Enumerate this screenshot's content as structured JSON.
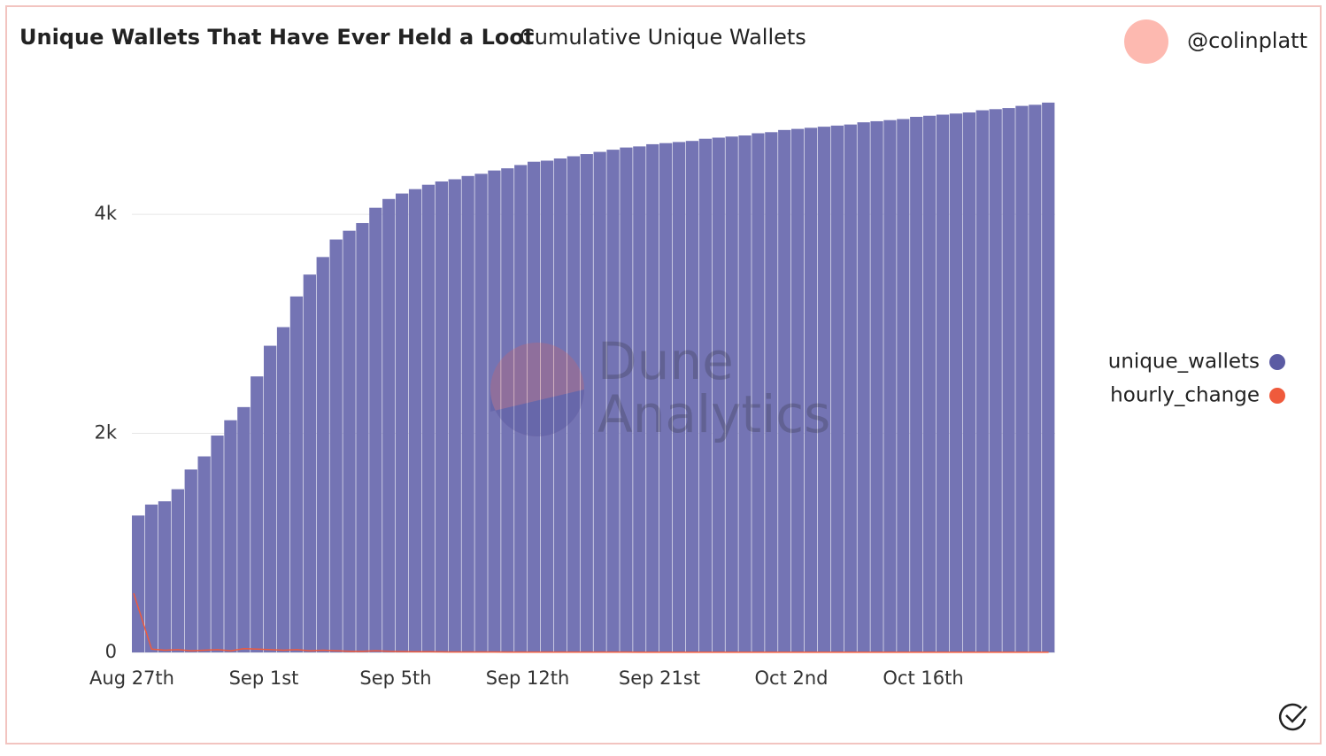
{
  "chart_data": {
    "type": "bar",
    "title": "Unique Wallets That Have Ever Held a Loot",
    "subtitle": "Cumulative Unique Wallets",
    "author": "@colinplatt",
    "watermark": [
      "Dune",
      "Analytics"
    ],
    "categories": [
      "Aug 27th",
      null,
      null,
      null,
      null,
      null,
      null,
      null,
      null,
      null,
      "Sep 1st",
      null,
      null,
      null,
      null,
      null,
      null,
      null,
      null,
      null,
      "Sep 5th",
      null,
      null,
      null,
      null,
      null,
      null,
      null,
      null,
      null,
      "Sep 12th",
      null,
      null,
      null,
      null,
      null,
      null,
      null,
      null,
      null,
      "Sep 21st",
      null,
      null,
      null,
      null,
      null,
      null,
      null,
      null,
      null,
      "Oct 2nd",
      null,
      null,
      null,
      null,
      null,
      null,
      null,
      null,
      null,
      "Oct 16th",
      null,
      null,
      null,
      null,
      null,
      null,
      null,
      null,
      null
    ],
    "series": [
      {
        "name": "unique_wallets",
        "color": "#7474b4",
        "legend_color": "#5b5ba3",
        "values": [
          1250,
          1350,
          1380,
          1490,
          1670,
          1790,
          1980,
          2120,
          2240,
          2520,
          2800,
          2970,
          3250,
          3450,
          3610,
          3770,
          3850,
          3920,
          4060,
          4140,
          4190,
          4230,
          4270,
          4300,
          4320,
          4350,
          4370,
          4400,
          4420,
          4450,
          4480,
          4490,
          4510,
          4530,
          4550,
          4570,
          4590,
          4610,
          4620,
          4640,
          4650,
          4660,
          4670,
          4690,
          4700,
          4710,
          4720,
          4740,
          4750,
          4770,
          4780,
          4790,
          4800,
          4810,
          4820,
          4840,
          4850,
          4860,
          4870,
          4890,
          4900,
          4910,
          4920,
          4930,
          4950,
          4960,
          4970,
          4990,
          5000,
          5020
        ]
      },
      {
        "name": "hourly_change",
        "color": "#ef5a3c",
        "legend_color": "#ef5a3c",
        "values": [
          540,
          30,
          20,
          25,
          15,
          20,
          25,
          15,
          35,
          30,
          25,
          20,
          25,
          15,
          20,
          15,
          10,
          10,
          15,
          10,
          8,
          6,
          6,
          5,
          4,
          4,
          4,
          4,
          3,
          3,
          3,
          3,
          3,
          3,
          3,
          3,
          3,
          3,
          2,
          2,
          2,
          2,
          2,
          2,
          2,
          2,
          2,
          2,
          2,
          2,
          2,
          2,
          2,
          2,
          2,
          2,
          2,
          2,
          2,
          2,
          2,
          2,
          2,
          2,
          2,
          2,
          2,
          2,
          2,
          2
        ]
      }
    ],
    "ylim": [
      0,
      5100
    ],
    "yticks": [
      0,
      {
        "value": 2000,
        "label": "2k"
      },
      {
        "value": 4000,
        "label": "4k"
      }
    ],
    "grid": true,
    "legend": "right"
  }
}
